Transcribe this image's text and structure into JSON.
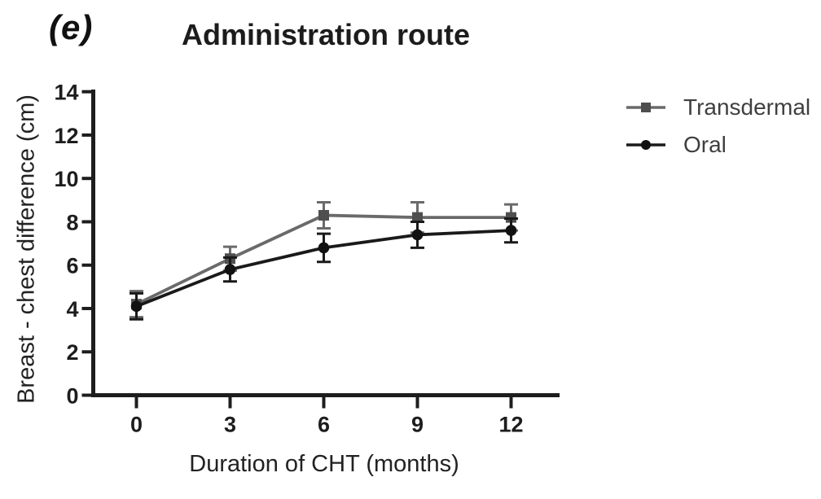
{
  "panel_label": "(e)",
  "chart_data": {
    "type": "line",
    "title": "Administration route",
    "xlabel": "Duration of CHT (months)",
    "ylabel": "Breast - chest difference (cm)",
    "x": [
      0,
      3,
      6,
      9,
      12
    ],
    "xticks": [
      "0",
      "3",
      "6",
      "9",
      "12"
    ],
    "yticks": [
      0,
      2,
      4,
      6,
      8,
      10,
      12,
      14
    ],
    "xlim": [
      0,
      13.5
    ],
    "ylim": [
      0,
      14
    ],
    "grid": false,
    "error_bars": true,
    "legend_position": "right-top",
    "axis_color": "#1d1d1d",
    "tick_label_color": "#1d1d1d",
    "series": [
      {
        "name": "Transdermal",
        "marker": "square",
        "color": "#6a6a6a",
        "marker_color": "#4f4f4f",
        "values": [
          4.2,
          6.3,
          8.3,
          8.2,
          8.2
        ],
        "errors": [
          0.6,
          0.55,
          0.6,
          0.7,
          0.6
        ]
      },
      {
        "name": "Oral",
        "marker": "circle",
        "color": "#1a1a1a",
        "marker_color": "#111111",
        "values": [
          4.1,
          5.8,
          6.8,
          7.4,
          7.6
        ],
        "errors": [
          0.6,
          0.55,
          0.65,
          0.6,
          0.55
        ]
      }
    ]
  }
}
